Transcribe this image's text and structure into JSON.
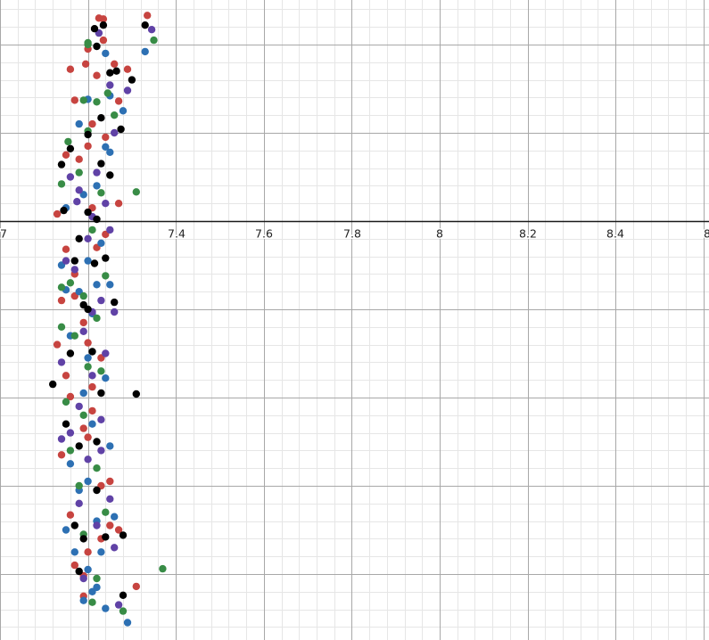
{
  "chart_data": {
    "type": "scatter",
    "title": "",
    "xlabel": "",
    "ylabel": "",
    "grid": true,
    "xlim": [
      7.0,
      8.6
    ],
    "ylim": [
      -4.7,
      2.5
    ],
    "x_tick_labels": [
      "7",
      "7.4",
      "7.6",
      "7.8",
      "8",
      "8.2",
      "8.4",
      "8"
    ],
    "series": [
      {
        "color": "#c74440",
        "points": [
          [
            7.225,
            2.3
          ],
          [
            7.235,
            2.29
          ],
          [
            7.335,
            2.33
          ],
          [
            7.195,
            1.78
          ],
          [
            7.17,
            1.37
          ],
          [
            7.21,
            0.15
          ],
          [
            7.15,
            -0.32
          ],
          [
            7.24,
            -0.15
          ],
          [
            7.21,
            -2.15
          ],
          [
            7.23,
            -3.0
          ],
          [
            7.31,
            -4.14
          ],
          [
            7.16,
            1.72
          ],
          [
            7.2,
            1.95
          ],
          [
            7.26,
            1.78
          ],
          [
            7.15,
            0.75
          ],
          [
            7.17,
            -0.85
          ],
          [
            7.2,
            -1.38
          ],
          [
            7.21,
            -1.88
          ],
          [
            7.19,
            -2.35
          ],
          [
            7.25,
            -3.45
          ],
          [
            7.19,
            -4.02
          ],
          [
            7.235,
            2.05
          ],
          [
            7.29,
            1.72
          ],
          [
            7.22,
            1.65
          ],
          [
            7.27,
            1.36
          ],
          [
            7.21,
            1.1
          ],
          [
            7.24,
            0.95
          ],
          [
            7.18,
            0.7
          ],
          [
            7.2,
            0.85
          ],
          [
            7.13,
            0.08
          ],
          [
            7.27,
            0.2
          ],
          [
            7.17,
            -0.6
          ],
          [
            7.22,
            -0.3
          ],
          [
            7.14,
            -0.9
          ],
          [
            7.19,
            -1.15
          ],
          [
            7.13,
            -1.4
          ],
          [
            7.23,
            -1.55
          ],
          [
            7.15,
            -1.75
          ],
          [
            7.16,
            -1.99
          ],
          [
            7.2,
            -2.45
          ],
          [
            7.14,
            -2.65
          ],
          [
            7.25,
            -2.95
          ],
          [
            7.16,
            -3.33
          ],
          [
            7.27,
            -3.5
          ],
          [
            7.2,
            -3.75
          ],
          [
            7.23,
            -3.6
          ],
          [
            7.17,
            -3.9
          ],
          [
            7.19,
            -4.25
          ]
        ]
      },
      {
        "color": "#2d70b3",
        "points": [
          [
            7.33,
            1.92
          ],
          [
            7.25,
            1.42
          ],
          [
            7.29,
            -4.55
          ],
          [
            7.24,
            -4.39
          ],
          [
            7.22,
            -4.15
          ],
          [
            7.15,
            -0.78
          ],
          [
            7.25,
            -0.72
          ],
          [
            7.17,
            -3.75
          ],
          [
            7.24,
            1.9
          ],
          [
            7.2,
            1.38
          ],
          [
            7.28,
            1.25
          ],
          [
            7.18,
            1.1
          ],
          [
            7.24,
            0.84
          ],
          [
            7.22,
            0.4
          ],
          [
            7.19,
            0.3
          ],
          [
            7.15,
            0.15
          ],
          [
            7.25,
            0.78
          ],
          [
            7.23,
            -0.25
          ],
          [
            7.2,
            -0.45
          ],
          [
            7.14,
            -0.5
          ],
          [
            7.18,
            -0.8
          ],
          [
            7.22,
            -0.72
          ],
          [
            7.21,
            -1.05
          ],
          [
            7.16,
            -1.3
          ],
          [
            7.2,
            -1.55
          ],
          [
            7.24,
            -1.78
          ],
          [
            7.19,
            -1.95
          ],
          [
            7.21,
            -2.3
          ],
          [
            7.25,
            -2.55
          ],
          [
            7.16,
            -2.75
          ],
          [
            7.2,
            -2.95
          ],
          [
            7.26,
            -3.35
          ],
          [
            7.18,
            -3.05
          ],
          [
            7.22,
            -3.4
          ],
          [
            7.15,
            -3.5
          ],
          [
            7.23,
            -3.75
          ],
          [
            7.2,
            -3.95
          ],
          [
            7.21,
            -4.2
          ],
          [
            7.19,
            -4.3
          ]
        ]
      },
      {
        "color": "#388c46",
        "points": [
          [
            7.35,
            2.05
          ],
          [
            7.2,
            2.0
          ],
          [
            7.31,
            0.33
          ],
          [
            7.37,
            -3.94
          ],
          [
            7.19,
            1.37
          ],
          [
            7.155,
            0.9
          ],
          [
            7.14,
            -0.75
          ],
          [
            7.14,
            -1.2
          ],
          [
            7.28,
            -4.42
          ],
          [
            7.2,
            2.02
          ],
          [
            7.2,
            1.02
          ],
          [
            7.22,
            1.35
          ],
          [
            7.245,
            1.45
          ],
          [
            7.26,
            1.2
          ],
          [
            7.18,
            0.55
          ],
          [
            7.14,
            0.42
          ],
          [
            7.23,
            0.32
          ],
          [
            7.21,
            -0.1
          ],
          [
            7.24,
            -0.62
          ],
          [
            7.16,
            -0.7
          ],
          [
            7.19,
            -0.85
          ],
          [
            7.22,
            -1.1
          ],
          [
            7.17,
            -1.3
          ],
          [
            7.2,
            -1.65
          ],
          [
            7.23,
            -1.7
          ],
          [
            7.15,
            -2.05
          ],
          [
            7.19,
            -2.2
          ],
          [
            7.16,
            -2.6
          ],
          [
            7.22,
            -2.8
          ],
          [
            7.18,
            -3.0
          ],
          [
            7.24,
            -3.3
          ],
          [
            7.19,
            -3.55
          ],
          [
            7.22,
            -4.05
          ],
          [
            7.21,
            -4.32
          ]
        ]
      },
      {
        "color": "#6042a6",
        "points": [
          [
            7.225,
            2.13
          ],
          [
            7.345,
            2.17
          ],
          [
            7.25,
            1.54
          ],
          [
            7.26,
            -1.03
          ],
          [
            7.21,
            -1.03
          ],
          [
            7.16,
            0.5
          ],
          [
            7.175,
            0.22
          ],
          [
            7.24,
            0.2
          ],
          [
            7.15,
            -0.45
          ],
          [
            7.14,
            -1.6
          ],
          [
            7.14,
            -2.47
          ],
          [
            7.23,
            -2.6
          ],
          [
            7.29,
            1.48
          ],
          [
            7.26,
            1.0
          ],
          [
            7.22,
            0.55
          ],
          [
            7.18,
            0.35
          ],
          [
            7.21,
            0.05
          ],
          [
            7.25,
            -0.1
          ],
          [
            7.2,
            -0.2
          ],
          [
            7.17,
            -0.55
          ],
          [
            7.23,
            -0.9
          ],
          [
            7.19,
            -1.25
          ],
          [
            7.24,
            -1.5
          ],
          [
            7.21,
            -1.75
          ],
          [
            7.18,
            -2.1
          ],
          [
            7.23,
            -2.25
          ],
          [
            7.16,
            -2.4
          ],
          [
            7.2,
            -2.7
          ],
          [
            7.25,
            -3.15
          ],
          [
            7.18,
            -3.2
          ],
          [
            7.22,
            -3.45
          ],
          [
            7.26,
            -3.7
          ],
          [
            7.19,
            -4.05
          ],
          [
            7.27,
            -4.35
          ]
        ]
      },
      {
        "color": "#000000",
        "points": [
          [
            7.235,
            2.22
          ],
          [
            7.33,
            2.22
          ],
          [
            7.215,
            2.18
          ],
          [
            7.265,
            1.7
          ],
          [
            7.3,
            1.6
          ],
          [
            7.25,
            1.68
          ],
          [
            7.23,
            1.17
          ],
          [
            7.2,
            0.98
          ],
          [
            7.275,
            1.04
          ],
          [
            7.23,
            0.65
          ],
          [
            7.14,
            0.64
          ],
          [
            7.25,
            0.52
          ],
          [
            7.145,
            0.12
          ],
          [
            7.2,
            0.1
          ],
          [
            7.22,
            0.02
          ],
          [
            7.17,
            -0.45
          ],
          [
            7.215,
            -0.48
          ],
          [
            7.24,
            -0.42
          ],
          [
            7.19,
            -0.95
          ],
          [
            7.26,
            -0.92
          ],
          [
            7.16,
            -1.5
          ],
          [
            7.21,
            -1.48
          ],
          [
            7.31,
            -1.96
          ],
          [
            7.15,
            -2.3
          ],
          [
            7.28,
            -3.56
          ],
          [
            7.28,
            -4.24
          ],
          [
            7.18,
            -2.55
          ],
          [
            7.22,
            -3.05
          ],
          [
            7.19,
            -3.6
          ],
          [
            7.24,
            -3.58
          ],
          [
            7.12,
            -1.85
          ],
          [
            7.2,
            -1.0
          ],
          [
            7.22,
            -2.5
          ],
          [
            7.17,
            -3.45
          ],
          [
            7.23,
            -1.95
          ],
          [
            7.16,
            0.82
          ],
          [
            7.18,
            -0.2
          ],
          [
            7.18,
            -3.97
          ],
          [
            7.22,
            1.98
          ]
        ]
      }
    ]
  }
}
